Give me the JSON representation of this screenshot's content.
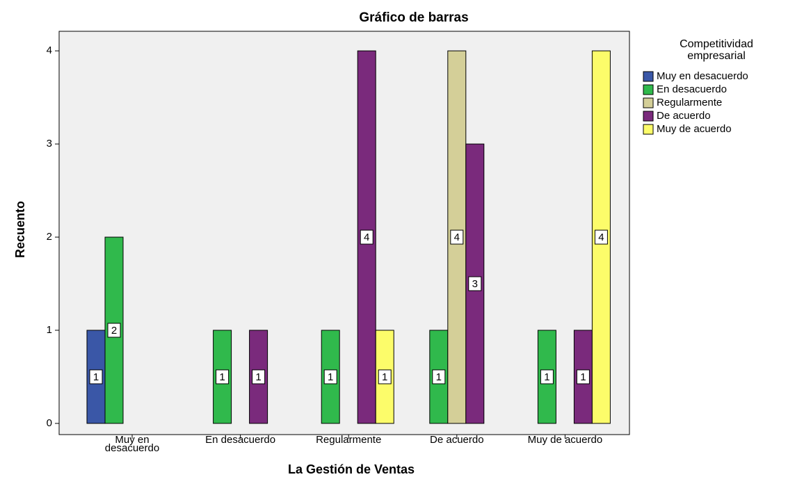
{
  "chart_data": {
    "type": "bar",
    "title": "Gráfico de barras",
    "x_label": "La Gestión de Ventas",
    "y_label": "Recuento",
    "legend_title": "Competitividad empresarial",
    "legend_position": "right",
    "categories": [
      "Muy en desacuerdo",
      "En desacuerdo",
      "Regularmente",
      "De acuerdo",
      "Muy de acuerdo"
    ],
    "series": [
      {
        "name": "Muy en desacuerdo",
        "color": "#3a57a7",
        "values": [
          1,
          null,
          null,
          null,
          null
        ]
      },
      {
        "name": "En desacuerdo",
        "color": "#30b94c",
        "values": [
          2,
          1,
          1,
          1,
          1
        ]
      },
      {
        "name": "Regularmente",
        "color": "#d4cf98",
        "values": [
          null,
          null,
          null,
          4,
          null
        ]
      },
      {
        "name": "De acuerdo",
        "color": "#7a2a7c",
        "values": [
          null,
          1,
          4,
          3,
          1
        ]
      },
      {
        "name": "Muy de acuerdo",
        "color": "#fcfc6a",
        "values": [
          null,
          null,
          1,
          null,
          4
        ]
      }
    ],
    "ylim": [
      -0.12,
      4.21
    ],
    "yticks": [
      0,
      1,
      2,
      3,
      4
    ],
    "grid": false,
    "data_labels": true
  }
}
